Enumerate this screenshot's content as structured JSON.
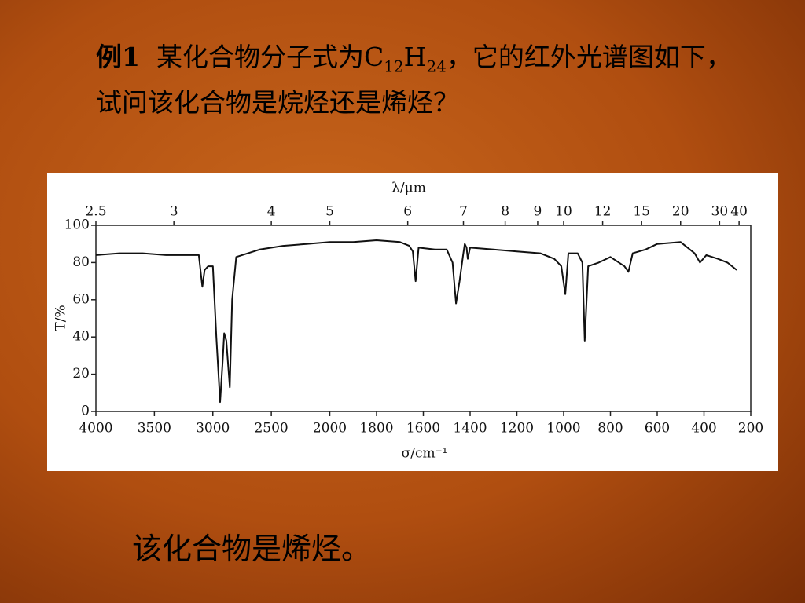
{
  "slide": {
    "question": [
      "例1",
      "某化合物分子式为C",
      "12",
      "H",
      "24",
      "，它的红外光谱图如下，试问该化合物是烷烃还是烯烃？"
    ],
    "answer": "该化合物是烯烃。"
  },
  "chart_data": {
    "type": "line",
    "x_label": "σ/cm⁻¹",
    "x2_label": "λ/μm",
    "y_label": "T/%",
    "x": [
      4000,
      3800,
      3600,
      3400,
      3200,
      3120,
      3090,
      3070,
      3040,
      3000,
      2970,
      2938,
      2915,
      2903,
      2885,
      2855,
      2835,
      2800,
      2600,
      2400,
      2200,
      2000,
      1900,
      1800,
      1700,
      1660,
      1645,
      1633,
      1620,
      1550,
      1500,
      1475,
      1460,
      1445,
      1430,
      1423,
      1415,
      1410,
      1400,
      1300,
      1200,
      1100,
      1040,
      1010,
      993,
      980,
      940,
      920,
      910,
      895,
      850,
      800,
      740,
      723,
      705,
      650,
      600,
      500,
      440,
      417,
      390,
      340,
      300,
      260
    ],
    "values": [
      84,
      85,
      85,
      84,
      84,
      84,
      67,
      76,
      78,
      78,
      40,
      5,
      28,
      42,
      38,
      13,
      60,
      83,
      87,
      89,
      90,
      91,
      91,
      92,
      91,
      89,
      86,
      70,
      88,
      87,
      87,
      80,
      58,
      70,
      84,
      90,
      88,
      82,
      88,
      87,
      86,
      85,
      82,
      78,
      63,
      85,
      85,
      80,
      38,
      78,
      80,
      83,
      78,
      75,
      85,
      87,
      90,
      91,
      85,
      80,
      84,
      82,
      80,
      76
    ],
    "color": "#111111",
    "xlim": [
      4000,
      200
    ],
    "x_scale_break": 2000,
    "x_scale_ratio": 2,
    "xticks": [
      4000,
      3500,
      3000,
      2500,
      2000,
      1800,
      1600,
      1400,
      1200,
      1000,
      800,
      600,
      400,
      200
    ],
    "x2ticks": [
      2.5,
      3,
      4,
      5,
      6,
      7,
      8,
      9,
      10,
      12,
      15,
      20,
      30,
      40
    ],
    "ylim": [
      0,
      100
    ],
    "yticks": [
      0,
      20,
      40,
      60,
      80,
      100
    ]
  }
}
